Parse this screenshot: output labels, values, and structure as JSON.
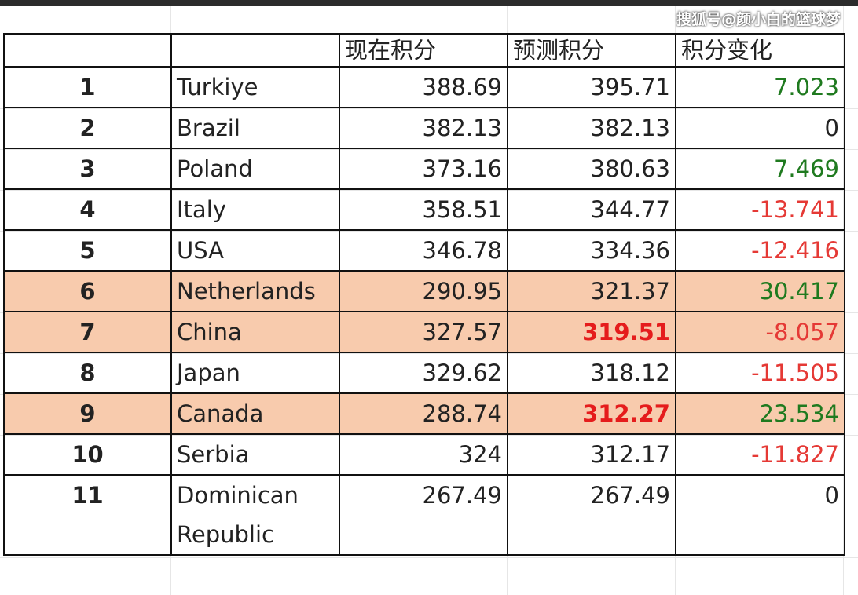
{
  "watermark": "搜狐号@颜小白的篮球梦",
  "table": {
    "header": [
      "",
      "",
      "现在积分",
      "预测积分",
      "积分变化"
    ],
    "rows": [
      {
        "rank": "1",
        "country": "Turkiye",
        "current": "388.69",
        "predicted": "395.71",
        "change": "7.023"
      },
      {
        "rank": "2",
        "country": "Brazil",
        "current": "382.13",
        "predicted": "382.13",
        "change": "0"
      },
      {
        "rank": "3",
        "country": "Poland",
        "current": "373.16",
        "predicted": "380.63",
        "change": "7.469"
      },
      {
        "rank": "4",
        "country": "Italy",
        "current": "358.51",
        "predicted": "344.77",
        "change": "-13.741"
      },
      {
        "rank": "5",
        "country": "USA",
        "current": "346.78",
        "predicted": "334.36",
        "change": "-12.416"
      },
      {
        "rank": "6",
        "country": "Netherlands",
        "current": "290.95",
        "predicted": "321.37",
        "change": "30.417",
        "highlight": true
      },
      {
        "rank": "7",
        "country": "China",
        "current": "327.57",
        "predicted": "319.51",
        "change": "-8.057",
        "highlight": true,
        "predicted_emphasis": true
      },
      {
        "rank": "8",
        "country": "Japan",
        "current": "329.62",
        "predicted": "318.12",
        "change": "-11.505"
      },
      {
        "rank": "9",
        "country": "Canada",
        "current": "288.74",
        "predicted": "312.27",
        "change": "23.534",
        "highlight": true,
        "predicted_emphasis": true
      },
      {
        "rank": "10",
        "country": "Serbia",
        "current": "324",
        "predicted": "312.17",
        "change": "-11.827"
      },
      {
        "rank": "11",
        "country": "Dominican Republic",
        "current": "267.49",
        "predicted": "267.49",
        "change": "0"
      }
    ]
  }
}
